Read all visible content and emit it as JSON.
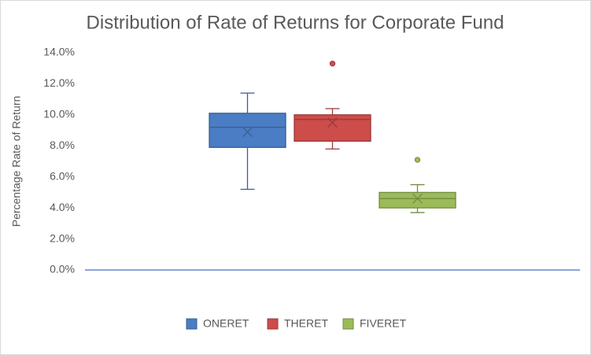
{
  "chart_data": {
    "type": "box",
    "title": "Distribution of Rate of Returns for Corporate Fund",
    "y_label": "Percentage Rate of Return",
    "ylim": [
      0,
      14
    ],
    "yticks": [
      {
        "value": 0,
        "label": "0.0%"
      },
      {
        "value": 2,
        "label": "2.0%"
      },
      {
        "value": 4,
        "label": "4.0%"
      },
      {
        "value": 6,
        "label": "6.0%"
      },
      {
        "value": 8,
        "label": "8.0%"
      },
      {
        "value": 10,
        "label": "10.0%"
      },
      {
        "value": 12,
        "label": "12.0%"
      },
      {
        "value": 14,
        "label": "14.0%"
      }
    ],
    "grid": false,
    "legend": "bottom",
    "series": [
      {
        "name": "ONERET",
        "color": "#4a7dc4",
        "whisker_low": 5.2,
        "q1": 7.9,
        "median": 9.2,
        "q3": 10.1,
        "whisker_high": 11.4,
        "mean": 8.9
      },
      {
        "name": "THERET",
        "color": "#cc4d4a",
        "whisker_low": 7.8,
        "q1": 8.3,
        "median": 9.7,
        "q3": 10.0,
        "whisker_high": 10.4,
        "mean": 9.5,
        "outliers": [
          13.3
        ]
      },
      {
        "name": "FIVERET",
        "color": "#9bbb59",
        "whisker_low": 3.7,
        "q1": 4.0,
        "median": 4.6,
        "q3": 5.0,
        "whisker_high": 5.5,
        "mean": 4.6,
        "outliers": [
          7.1
        ]
      }
    ]
  }
}
